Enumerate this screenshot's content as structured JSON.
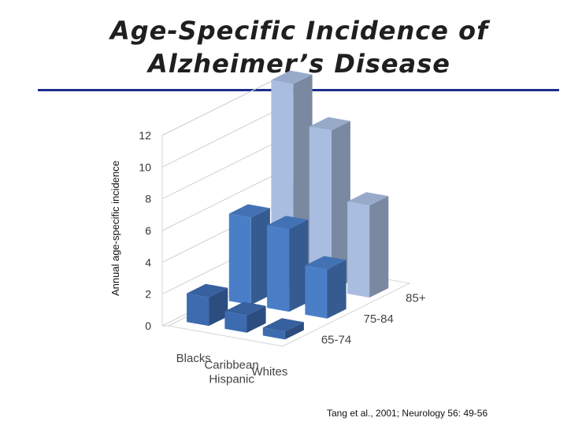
{
  "slide": {
    "title_line1": "Age-Specific Incidence of",
    "title_line2": "Alzheimer’s Disease",
    "source": "Tang et al., 2001; Neurology 56: 49-56"
  },
  "chart_data": {
    "type": "bar",
    "subtype": "3d-clustered",
    "ylabel": "Annual age-specific incidence",
    "ylim": [
      0,
      12
    ],
    "yticks": [
      0,
      2,
      4,
      6,
      8,
      10,
      12
    ],
    "grid": true,
    "categories": [
      "Blacks",
      "Caribbean\nHispanic",
      "Whites"
    ],
    "series": [
      {
        "name": "65-74",
        "color": "#3d6bb0",
        "values": [
          1.8,
          1.1,
          0.5
        ]
      },
      {
        "name": "75-84",
        "color": "#4a7fc8",
        "values": [
          5.5,
          5.2,
          3.1
        ]
      },
      {
        "name": "85+",
        "color": "#a9bde0",
        "values": [
          12.6,
          10.1,
          5.8
        ]
      }
    ]
  }
}
